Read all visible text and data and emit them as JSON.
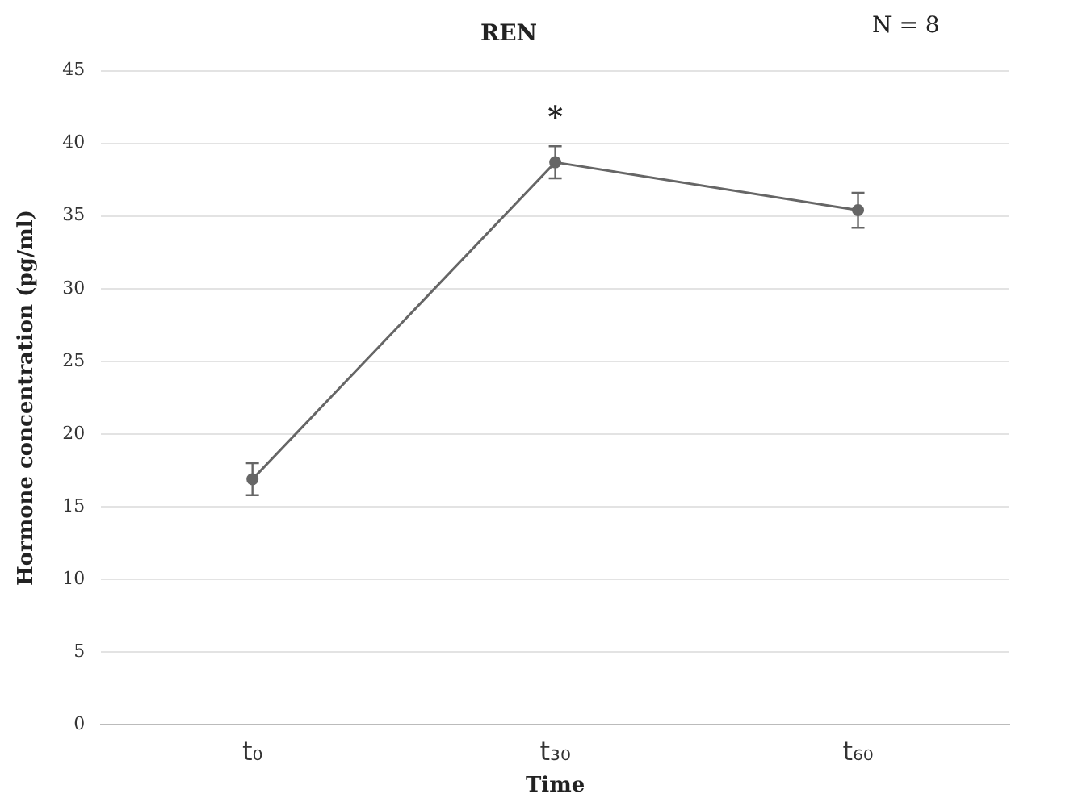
{
  "chart_data": {
    "type": "line",
    "title": "REN",
    "xlabel": "Time",
    "ylabel": "Hormone concentration (pg/ml)",
    "categories": [
      "t₀",
      "t₃₀",
      "t₆₀"
    ],
    "series": [
      {
        "color": "#666666",
        "values": [
          16.9,
          38.7,
          35.4
        ],
        "errors": [
          1.1,
          1.1,
          1.2
        ]
      }
    ],
    "ylim": [
      0,
      45
    ],
    "yticks": [
      0,
      5,
      10,
      15,
      20,
      25,
      30,
      35,
      40,
      45
    ],
    "grid": "y",
    "legend": false,
    "marker": "circle",
    "line_style": "solid",
    "annotations": [
      "*",
      "N = 8"
    ]
  }
}
